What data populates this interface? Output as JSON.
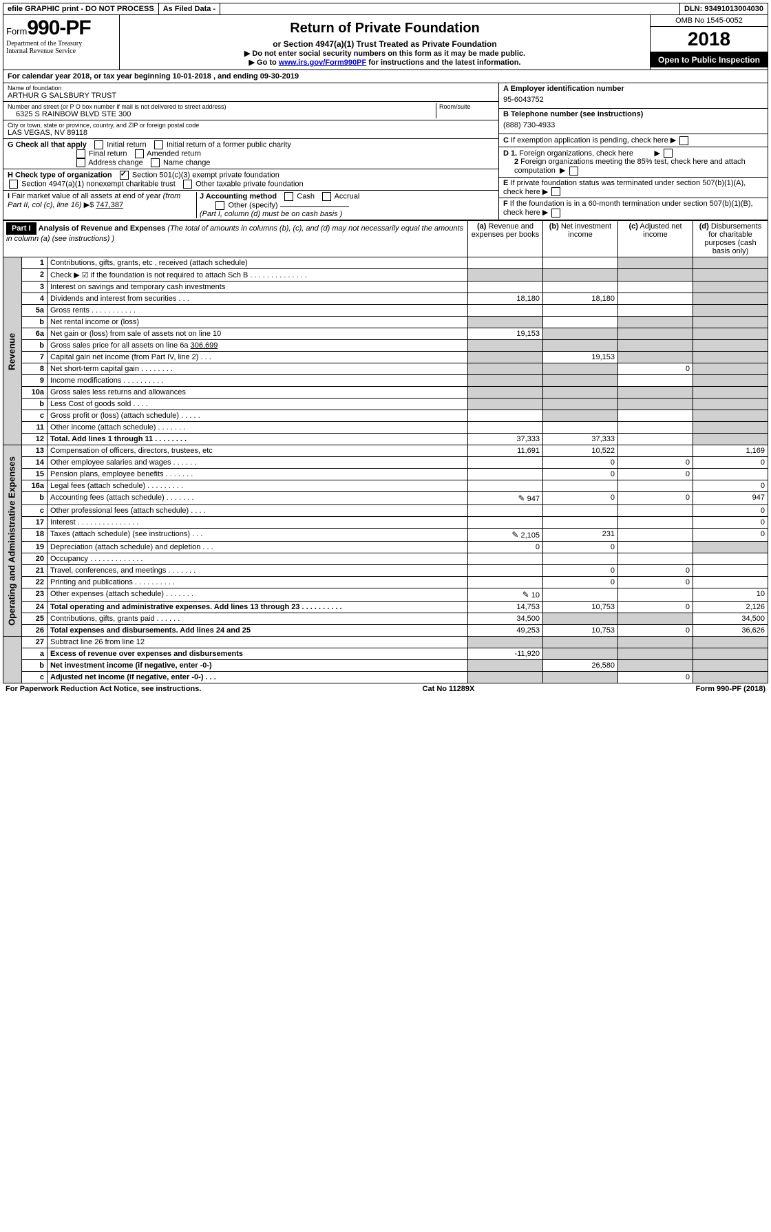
{
  "topbar": {
    "efile": "efile GRAPHIC print - DO NOT PROCESS",
    "asfiled": "As Filed Data -",
    "dln_label": "DLN:",
    "dln": "93491013004030"
  },
  "header": {
    "form_prefix": "Form",
    "form_no": "990-PF",
    "dept": "Department of the Treasury\nInternal Revenue Service",
    "title": "Return of Private Foundation",
    "subtitle": "or Section 4947(a)(1) Trust Treated as Private Foundation",
    "inst1": "▶ Do not enter social security numbers on this form as it may be made public.",
    "inst2_pre": "▶ Go to ",
    "inst2_link": "www.irs.gov/Form990PF",
    "inst2_post": " for instructions and the latest information.",
    "omb": "OMB No 1545-0052",
    "year": "2018",
    "open": "Open to Public Inspection"
  },
  "calyear": "For calendar year 2018, or tax year beginning 10-01-2018               , and ending 09-30-2019",
  "info": {
    "name_lbl": "Name of foundation",
    "name": "ARTHUR G SALSBURY TRUST",
    "addr_lbl": "Number and street (or P O  box number if mail is not delivered to street address)",
    "addr": "6325 S RAINBOW BLVD STE 300",
    "room_lbl": "Room/suite",
    "city_lbl": "City or town, state or province, country, and ZIP or foreign postal code",
    "city": "LAS VEGAS, NV  89118",
    "ein_lbl": "A Employer identification number",
    "ein": "95-6043752",
    "tel_lbl": "B Telephone number (see instructions)",
    "tel": "(888) 730-4933",
    "c_lbl": "C If exemption application is pending, check here",
    "d1": "D 1. Foreign organizations, check here",
    "d2": "2  Foreign organizations meeting the 85% test, check here and attach computation",
    "e": "E  If private foundation status was terminated under section 507(b)(1)(A), check here",
    "f": "F  If the foundation is in a 60-month termination under section 507(b)(1)(B), check here"
  },
  "g": {
    "label": "G Check all that apply",
    "opts": [
      "Initial return",
      "Initial return of a former public charity",
      "Final return",
      "Amended return",
      "Address change",
      "Name change"
    ]
  },
  "h": {
    "label": "H Check type of organization",
    "opts": [
      "Section 501(c)(3) exempt private foundation",
      "Section 4947(a)(1) nonexempt charitable trust",
      "Other taxable private foundation"
    ]
  },
  "i": {
    "label": "I Fair market value of all assets at end of year (from Part II, col  (c), line 16) ▶$",
    "value": "747,387"
  },
  "j": {
    "label": "J Accounting method",
    "cash": "Cash",
    "accrual": "Accrual",
    "other": "Other (specify)",
    "note": "(Part I, column (d) must be on cash basis )"
  },
  "part1": {
    "label": "Part I",
    "title": "Analysis of Revenue and Expenses",
    "note": "(The total of amounts in columns (b), (c), and (d) may not necessarily equal the amounts in column (a) (see instructions) )",
    "cols": {
      "a": "(a)   Revenue and expenses per books",
      "b": "(b)  Net investment income",
      "c": "(c)  Adjusted net income",
      "d": "(d)  Disbursements for charitable purposes (cash basis only)"
    }
  },
  "revenue_label": "Revenue",
  "expenses_label": "Operating and Administrative Expenses",
  "rows": {
    "1": {
      "n": "1",
      "d": "Contributions, gifts, grants, etc , received (attach schedule)"
    },
    "2": {
      "n": "2",
      "d": "Check ▶ ☑ if the foundation is not required to attach Sch B   .  .  .  .  .  .  .  .  .  .  .  .  .  ."
    },
    "3": {
      "n": "3",
      "d": "Interest on savings and temporary cash investments"
    },
    "4": {
      "n": "4",
      "d": "Dividends and interest from securities    .  .  .",
      "a": "18,180",
      "b": "18,180"
    },
    "5a": {
      "n": "5a",
      "d": "Gross rents     .  .  .  .  .  .  .  .  .  .  ."
    },
    "5b": {
      "n": "b",
      "d": "Net rental income or (loss)"
    },
    "6a": {
      "n": "6a",
      "d": "Net gain or (loss) from sale of assets not on line 10",
      "a": "19,153"
    },
    "6b": {
      "n": "b",
      "d": "Gross sales price for all assets on line 6a",
      "inline": "306,699"
    },
    "7": {
      "n": "7",
      "d": "Capital gain net income (from Part IV, line 2)   .  .  .",
      "b": "19,153"
    },
    "8": {
      "n": "8",
      "d": "Net short-term capital gain  .  .  .  .  .  .  .  .",
      "c": "0"
    },
    "9": {
      "n": "9",
      "d": "Income modifications .  .  .  .  .  .  .  .  .  ."
    },
    "10a": {
      "n": "10a",
      "d": "Gross sales less returns and allowances"
    },
    "10b": {
      "n": "b",
      "d": "Less  Cost of goods sold    .  .  .  ."
    },
    "10c": {
      "n": "c",
      "d": "Gross profit or (loss) (attach schedule)   .  .  .  .  ."
    },
    "11": {
      "n": "11",
      "d": "Other income (attach schedule)    .  .  .  .  .  .  ."
    },
    "12": {
      "n": "12",
      "d": "Total. Add lines 1 through 11   .  .  .  .  .  .  .  .",
      "a": "37,333",
      "b": "37,333",
      "bold": true
    },
    "13": {
      "n": "13",
      "d": "Compensation of officers, directors, trustees, etc",
      "a": "11,691",
      "b": "10,522",
      "dd": "1,169"
    },
    "14": {
      "n": "14",
      "d": "Other employee salaries and wages    .  .  .  .  .  .",
      "b": "0",
      "c": "0",
      "dd": "0"
    },
    "15": {
      "n": "15",
      "d": "Pension plans, employee benefits  .  .  .  .  .  .  .",
      "b": "0",
      "c": "0"
    },
    "16a": {
      "n": "16a",
      "d": "Legal fees (attach schedule) .  .  .  .  .  .  .  .  .",
      "dd": "0"
    },
    "16b": {
      "n": "b",
      "d": "Accounting fees (attach schedule) .  .  .  .  .  .  .",
      "a": "947",
      "b": "0",
      "c": "0",
      "dd": "947",
      "pencil": true
    },
    "16c": {
      "n": "c",
      "d": "Other professional fees (attach schedule)   .  .  .  .",
      "dd": "0"
    },
    "17": {
      "n": "17",
      "d": "Interest  .  .  .  .  .  .  .  .  .  .  .  .  .  .  .",
      "dd": "0"
    },
    "18": {
      "n": "18",
      "d": "Taxes (attach schedule) (see instructions)     .  .  .",
      "a": "2,105",
      "b": "231",
      "dd": "0",
      "pencil": true
    },
    "19": {
      "n": "19",
      "d": "Depreciation (attach schedule) and depletion   .  .  .",
      "a": "0",
      "b": "0"
    },
    "20": {
      "n": "20",
      "d": "Occupancy   .  .  .  .  .  .  .  .  .  .  .  .  ."
    },
    "21": {
      "n": "21",
      "d": "Travel, conferences, and meetings .  .  .  .  .  .  .",
      "b": "0",
      "c": "0"
    },
    "22": {
      "n": "22",
      "d": "Printing and publications .  .  .  .  .  .  .  .  .  .",
      "b": "0",
      "c": "0"
    },
    "23": {
      "n": "23",
      "d": "Other expenses (attach schedule) .  .  .  .  .  .  .",
      "a": "10",
      "dd": "10",
      "pencil": true
    },
    "24": {
      "n": "24",
      "d": "Total operating and administrative expenses. Add lines 13 through 23  .  .  .  .  .  .  .  .  .  .",
      "a": "14,753",
      "b": "10,753",
      "c": "0",
      "dd": "2,126",
      "bold": true
    },
    "25": {
      "n": "25",
      "d": "Contributions, gifts, grants paid     .  .  .  .  .  .",
      "a": "34,500",
      "dd": "34,500"
    },
    "26": {
      "n": "26",
      "d": "Total expenses and disbursements. Add lines 24 and 25",
      "a": "49,253",
      "b": "10,753",
      "c": "0",
      "dd": "36,626",
      "bold": true
    },
    "27": {
      "n": "27",
      "d": "Subtract line 26 from line 12"
    },
    "27a": {
      "n": "a",
      "d": "Excess of revenue over expenses and disbursements",
      "a": "-11,920",
      "bold": true
    },
    "27b": {
      "n": "b",
      "d": "Net investment income (if negative, enter -0-)",
      "b": "26,580",
      "bold": true
    },
    "27c": {
      "n": "c",
      "d": "Adjusted net income (if negative, enter -0-)  .  .  .",
      "c": "0",
      "bold": true
    }
  },
  "footer": {
    "left": "For Paperwork Reduction Act Notice, see instructions.",
    "mid": "Cat  No  11289X",
    "right": "Form 990-PF (2018)"
  }
}
